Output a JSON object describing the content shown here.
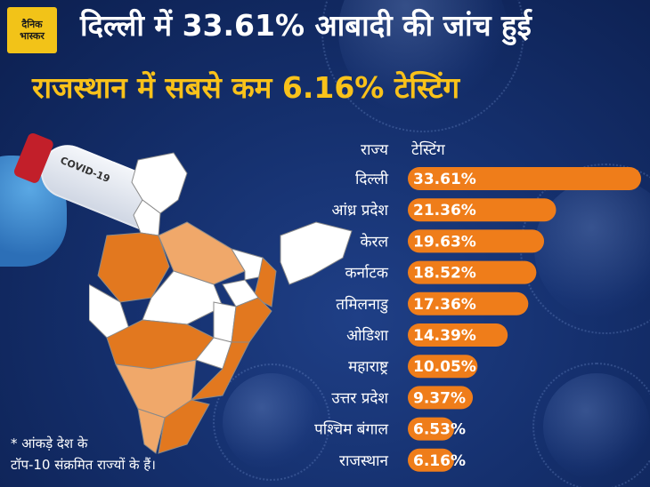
{
  "brand": {
    "logo_text": "दैनिक भास्कर"
  },
  "header": {
    "title_line1": "दिल्ली में 33.61% आबादी की जांच हुई",
    "title_line2": "राजस्थान में सबसे कम 6.16% टेस्टिंग"
  },
  "illustration": {
    "tube_label": "COVID-19"
  },
  "footnote": {
    "line1": "* आंकड़े देश के",
    "line2": "टॉप-10 संक्रमित राज्यों के हैं।"
  },
  "colors": {
    "background": "#15306e",
    "title_highlight": "#f9c21a",
    "bar": "#ef7d1a",
    "map_dark": "#e2781f",
    "map_light": "#f0a86a",
    "map_white": "#ffffff"
  },
  "chart_data": {
    "type": "bar",
    "orientation": "horizontal",
    "category_header": "राज्य",
    "value_header": "टेस्टिंग",
    "categories": [
      "दिल्ली",
      "आंध्र प्रदेश",
      "केरल",
      "कर्नाटक",
      "तमिलनाडु",
      "ओडिशा",
      "महाराष्ट्र",
      "उत्तर प्रदेश",
      "पश्चिम बंगाल",
      "राजस्थान"
    ],
    "values": [
      33.61,
      21.36,
      19.63,
      18.52,
      17.36,
      14.39,
      10.05,
      9.37,
      6.53,
      6.16
    ],
    "value_labels": [
      "33.61%",
      "21.36%",
      "19.63%",
      "18.52%",
      "17.36%",
      "14.39%",
      "10.05%",
      "9.37%",
      "6.53%",
      "6.16%"
    ],
    "unit": "%"
  }
}
